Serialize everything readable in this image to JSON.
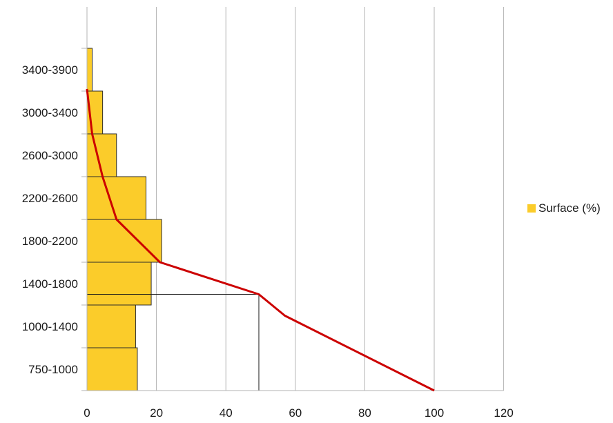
{
  "chart_data": {
    "type": "bar",
    "orientation": "horizontal",
    "categories": [
      "750-1000",
      "1000-1400",
      "1400-1800",
      "1800-2200",
      "2200-2600",
      "2600-3000",
      "3000-3400",
      "3400-3900"
    ],
    "series": [
      {
        "name": "Surface (%)",
        "values": [
          14.5,
          14,
          18.5,
          21.5,
          17,
          8.5,
          4.5,
          1.5
        ],
        "color": "#fbcc2a"
      }
    ],
    "cumulative_curve": {
      "color": "#cc0000",
      "points": [
        [
          100,
          0
        ],
        [
          57,
          1.75
        ],
        [
          49.5,
          2.25
        ],
        [
          21,
          3
        ],
        [
          8.5,
          4
        ],
        [
          4.5,
          5
        ],
        [
          1.5,
          6
        ],
        [
          0,
          7.05
        ]
      ]
    },
    "reference_x": 49.5,
    "xlim": [
      0,
      120
    ],
    "xticks": [
      0,
      20,
      40,
      60,
      80,
      100,
      120
    ],
    "grid": "vertical",
    "legend": "right"
  }
}
